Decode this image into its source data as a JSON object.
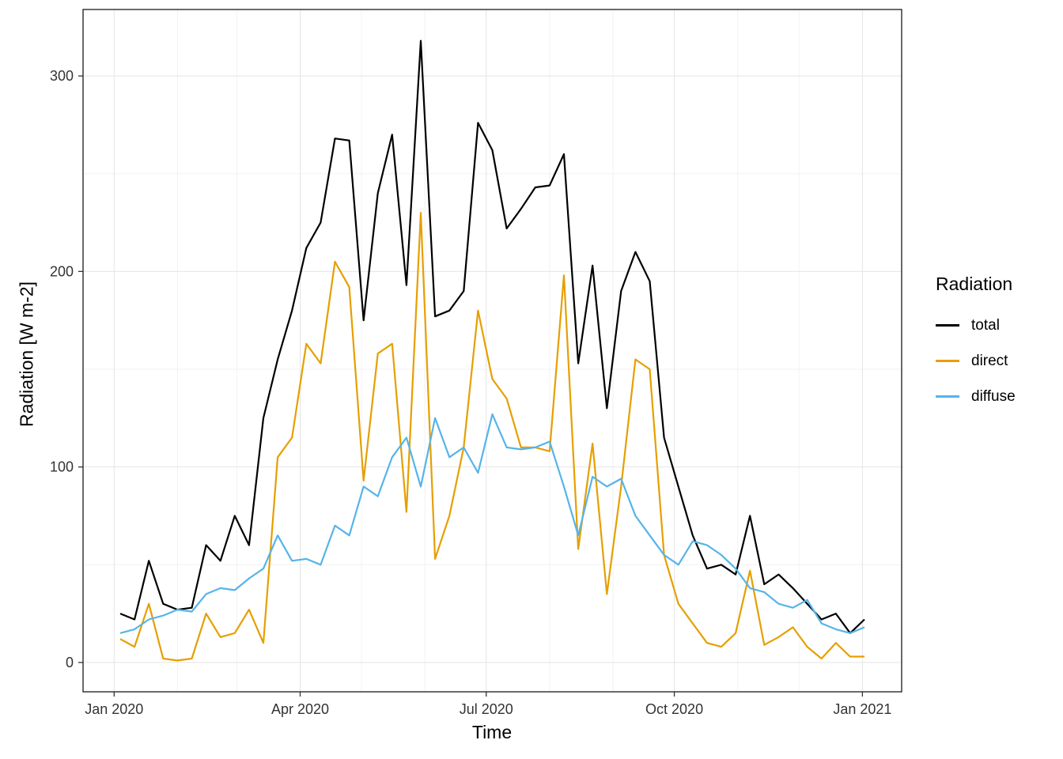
{
  "chart_data": {
    "type": "line",
    "title": "",
    "xlabel": "Time",
    "ylabel": "Radiation [W m-2]",
    "legend_title": "Radiation",
    "legend_position": "right",
    "grid": true,
    "grid_major_color": "#e4e4e4",
    "grid_minor_color": "#f2f2f2",
    "x_unit": "days since 2020-01-01, weekly means",
    "x_days": {
      "start": 3,
      "step": 7,
      "count": 53
    },
    "xlim": [
      -15.2,
      385.2
    ],
    "ylim": [
      -15,
      334
    ],
    "x_ticks": [
      {
        "label": "Jan 2020",
        "day": 0
      },
      {
        "label": "Apr 2020",
        "day": 91
      },
      {
        "label": "Jul 2020",
        "day": 182
      },
      {
        "label": "Oct 2020",
        "day": 274
      },
      {
        "label": "Jan 2021",
        "day": 366
      }
    ],
    "x_minor_days": [
      31,
      60,
      121,
      152,
      213,
      244,
      305,
      335
    ],
    "y_ticks": [
      0,
      100,
      200,
      300
    ],
    "y_minor": [
      50,
      150,
      250
    ],
    "series": [
      {
        "name": "total",
        "color": "#000000",
        "values": [
          25,
          22,
          52,
          30,
          27,
          28,
          60,
          52,
          75,
          60,
          125,
          155,
          180,
          212,
          225,
          268,
          267,
          175,
          240,
          270,
          193,
          318,
          177,
          180,
          190,
          276,
          262,
          222,
          232,
          243,
          244,
          260,
          153,
          203,
          130,
          190,
          210,
          195,
          115,
          90,
          65,
          48,
          50,
          45,
          75,
          40,
          45,
          38,
          30,
          22,
          25,
          15,
          22
        ]
      },
      {
        "name": "direct",
        "color": "#E69F00",
        "values": [
          12,
          8,
          30,
          2,
          1,
          2,
          25,
          13,
          15,
          27,
          10,
          105,
          115,
          163,
          153,
          205,
          192,
          93,
          158,
          163,
          77,
          230,
          53,
          75,
          110,
          180,
          145,
          135,
          110,
          110,
          108,
          198,
          58,
          112,
          35,
          90,
          155,
          150,
          55,
          30,
          20,
          10,
          8,
          15,
          47,
          9,
          13,
          18,
          8,
          2,
          10,
          3,
          3
        ]
      },
      {
        "name": "diffuse",
        "color": "#56B4E9",
        "values": [
          15,
          17,
          22,
          24,
          27,
          26,
          35,
          38,
          37,
          43,
          48,
          65,
          52,
          53,
          50,
          70,
          65,
          90,
          85,
          105,
          115,
          90,
          125,
          105,
          110,
          97,
          127,
          110,
          109,
          110,
          113,
          90,
          65,
          95,
          90,
          94,
          75,
          65,
          55,
          50,
          62,
          60,
          55,
          48,
          38,
          36,
          30,
          28,
          32,
          20,
          17,
          15,
          18
        ]
      }
    ]
  }
}
